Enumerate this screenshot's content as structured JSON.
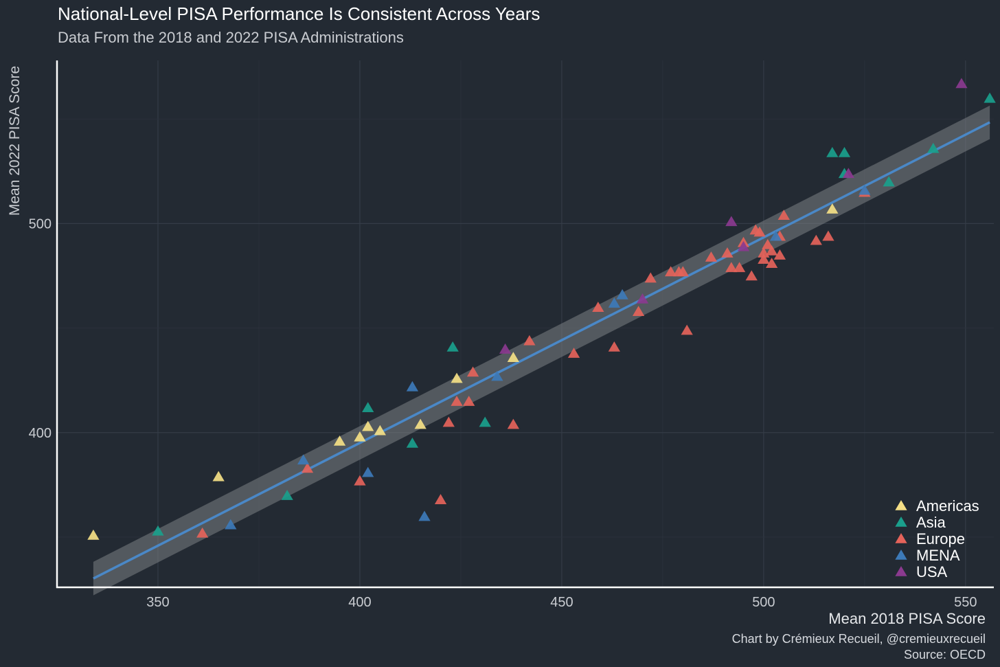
{
  "chart_data": {
    "type": "scatter",
    "title": "National-Level PISA Performance Is Consistent Across Years",
    "subtitle": "Data From the 2018 and 2022 PISA Administrations",
    "xlabel": "Mean 2018 PISA Score",
    "ylabel": "Mean 2022 PISA Score",
    "caption_line1": "Chart by Crémieux Recueil, @cremieuxrecueil",
    "caption_line2": "Source: OECD",
    "xlim": [
      325,
      557
    ],
    "ylim": [
      326,
      578
    ],
    "x_ticks": [
      350,
      400,
      450,
      500,
      550
    ],
    "y_ticks": [
      400,
      500
    ],
    "grid": true,
    "legend_position": "bottom-right",
    "trend_line": {
      "x_start": 334,
      "y_start": 330.2,
      "x_end": 556,
      "y_end": 548.4,
      "ci_halfwidth": 8
    },
    "series": [
      {
        "name": "Americas",
        "color": "#f5df86",
        "points": [
          [
            334,
            351
          ],
          [
            365,
            379
          ],
          [
            395,
            396
          ],
          [
            400,
            398
          ],
          [
            402,
            403
          ],
          [
            405,
            401
          ],
          [
            415,
            404
          ],
          [
            424,
            426
          ],
          [
            438,
            436
          ],
          [
            517,
            507
          ]
        ]
      },
      {
        "name": "Asia",
        "color": "#1a9f8c",
        "points": [
          [
            350,
            353
          ],
          [
            382,
            370
          ],
          [
            402,
            412
          ],
          [
            413,
            395
          ],
          [
            423,
            441
          ],
          [
            431,
            405
          ],
          [
            517,
            534
          ],
          [
            520,
            534
          ],
          [
            520,
            524
          ],
          [
            531,
            520
          ],
          [
            542,
            536
          ],
          [
            556,
            560
          ]
        ]
      },
      {
        "name": "Europe",
        "color": "#e5635a",
        "points": [
          [
            361,
            352
          ],
          [
            387,
            383
          ],
          [
            400,
            377
          ],
          [
            420,
            368
          ],
          [
            422,
            405
          ],
          [
            424,
            415
          ],
          [
            427,
            415
          ],
          [
            428,
            429
          ],
          [
            438,
            404
          ],
          [
            442,
            444
          ],
          [
            453,
            438
          ],
          [
            459,
            460
          ],
          [
            463,
            441
          ],
          [
            469,
            458
          ],
          [
            472,
            474
          ],
          [
            477,
            477
          ],
          [
            479,
            477
          ],
          [
            480,
            477
          ],
          [
            481,
            449
          ],
          [
            487,
            484
          ],
          [
            491,
            486
          ],
          [
            492,
            479
          ],
          [
            494,
            479
          ],
          [
            495,
            491
          ],
          [
            497,
            475
          ],
          [
            498,
            497
          ],
          [
            499,
            496
          ],
          [
            500,
            483
          ],
          [
            500,
            486
          ],
          [
            501,
            490
          ],
          [
            502,
            481
          ],
          [
            502,
            487
          ],
          [
            504,
            485
          ],
          [
            504,
            494
          ],
          [
            505,
            504
          ],
          [
            513,
            492
          ],
          [
            516,
            494
          ],
          [
            525,
            515
          ]
        ]
      },
      {
        "name": "MENA",
        "color": "#3d7ab8",
        "points": [
          [
            368,
            356
          ],
          [
            386,
            387
          ],
          [
            402,
            381
          ],
          [
            413,
            422
          ],
          [
            416,
            360
          ],
          [
            434,
            427
          ],
          [
            463,
            462
          ],
          [
            465,
            466
          ],
          [
            503,
            494
          ],
          [
            525,
            516
          ]
        ]
      },
      {
        "name": "USA",
        "color": "#8b3a8f",
        "points": [
          [
            436,
            440
          ],
          [
            470,
            464
          ],
          [
            492,
            501
          ],
          [
            495,
            489
          ],
          [
            521,
            524
          ],
          [
            549,
            567
          ]
        ]
      }
    ]
  }
}
